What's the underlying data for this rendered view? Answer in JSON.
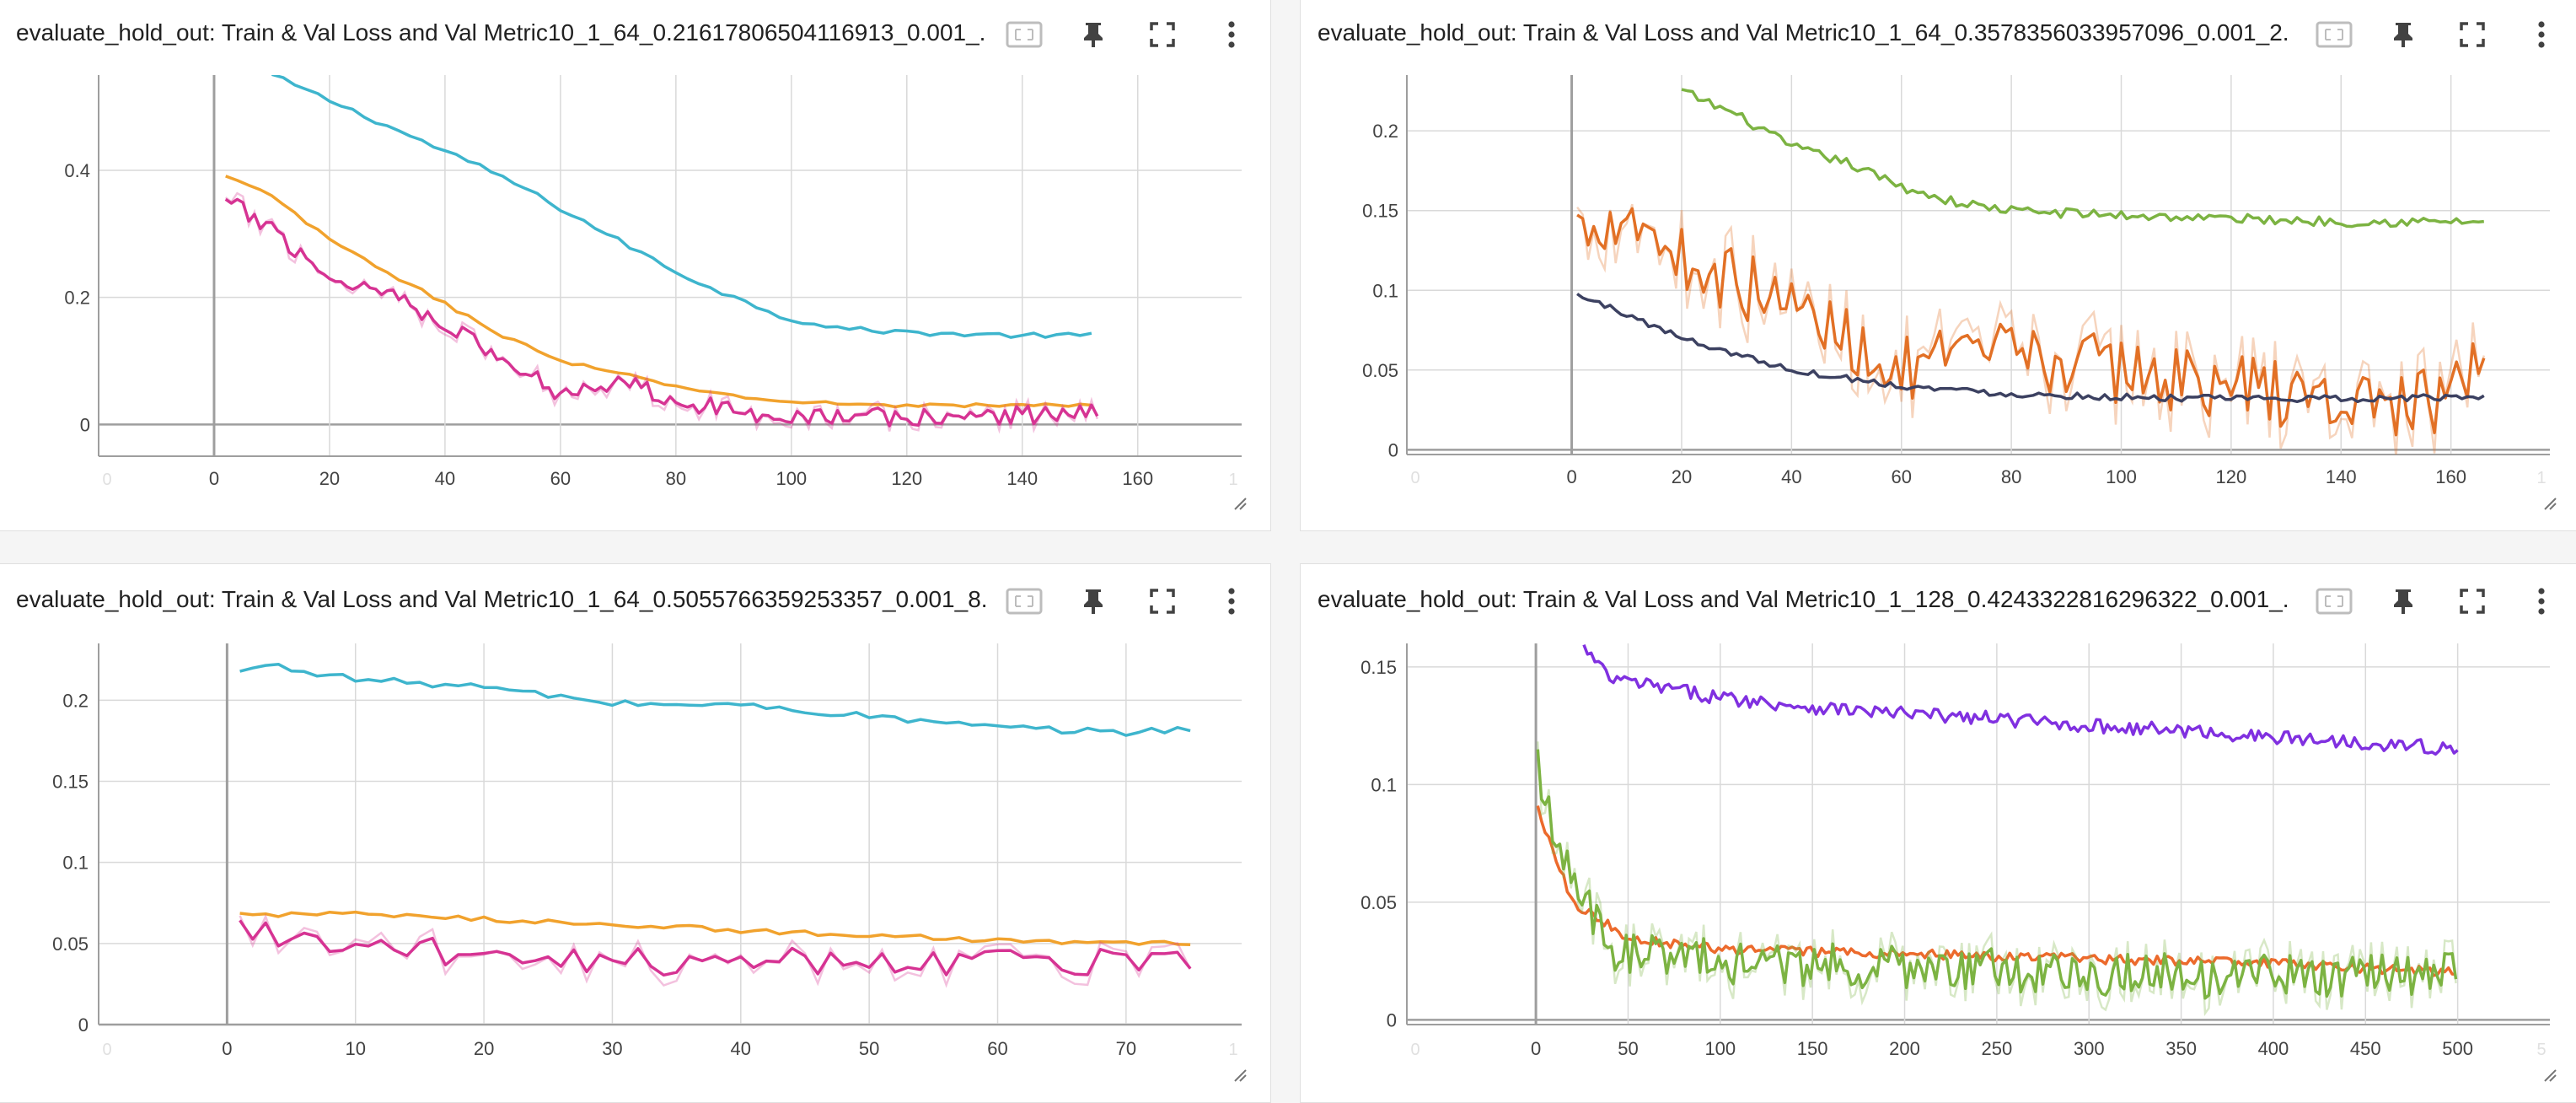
{
  "colors": {
    "cyan": "#3eb5cd",
    "orange": "#f1a22d",
    "magenta": "#d63393",
    "green": "#7cb342",
    "darkorange": "#e27025",
    "navy": "#3c4161",
    "purple": "#8030e0",
    "orangered": "#ec6a2c"
  },
  "icons": [
    "fit-domain-icon",
    "pin-icon",
    "fullscreen-icon",
    "more-vert-icon"
  ],
  "cards": [
    {
      "title": "evaluate_hold_out: Train & Val Loss and Val Metric10_1_64_0.21617806504116913_0.001_..."
    },
    {
      "title": "evaluate_hold_out: Train & Val Loss and Val Metric10_1_64_0.3578356033957096_0.001_2..."
    },
    {
      "title": "evaluate_hold_out: Train & Val Loss and Val Metric10_1_64_0.5055766359253357_0.001_8..."
    },
    {
      "title": "evaluate_hold_out: Train & Val Loss and Val Metric10_1_128_0.4243322816296322_0.001_..."
    }
  ],
  "chart_data": [
    {
      "type": "line",
      "xlim": [
        -20,
        178
      ],
      "ylim": [
        -0.05,
        0.55
      ],
      "xticks": [
        0,
        20,
        40,
        60,
        80,
        100,
        120,
        140,
        160
      ],
      "xtick_labels": [
        "0",
        "20",
        "40",
        "60",
        "80",
        "100",
        "120",
        "140",
        "160"
      ],
      "xedge_labels": [
        "0",
        "1"
      ],
      "yticks": [
        0,
        0.2,
        0.4
      ],
      "ytick_labels": [
        "0",
        "0.2",
        "0.4"
      ],
      "grid": true,
      "series": [
        {
          "color": "cyan",
          "step": 2,
          "points": [
            [
              10,
              0.55
            ],
            [
              20,
              0.51
            ],
            [
              30,
              0.47
            ],
            [
              40,
              0.43
            ],
            [
              50,
              0.39
            ],
            [
              60,
              0.34
            ],
            [
              70,
              0.29
            ],
            [
              80,
              0.24
            ],
            [
              90,
              0.2
            ],
            [
              100,
              0.165
            ],
            [
              110,
              0.15
            ],
            [
              120,
              0.145
            ],
            [
              130,
              0.142
            ],
            [
              140,
              0.14
            ],
            [
              153,
              0.14
            ]
          ],
          "noise": 0.004
        },
        {
          "color": "orange",
          "step": 2,
          "points": [
            [
              2,
              0.39
            ],
            [
              10,
              0.36
            ],
            [
              20,
              0.29
            ],
            [
              30,
              0.24
            ],
            [
              40,
              0.19
            ],
            [
              50,
              0.14
            ],
            [
              60,
              0.1
            ],
            [
              70,
              0.08
            ],
            [
              80,
              0.06
            ],
            [
              90,
              0.045
            ],
            [
              100,
              0.035
            ],
            [
              120,
              0.03
            ],
            [
              140,
              0.03
            ],
            [
              153,
              0.03
            ]
          ],
          "noise": 0.003
        },
        {
          "color": "magenta",
          "step": 1,
          "points": [
            [
              2,
              0.35
            ],
            [
              10,
              0.31
            ],
            [
              20,
              0.23
            ],
            [
              30,
              0.21
            ],
            [
              40,
              0.16
            ],
            [
              50,
              0.1
            ],
            [
              60,
              0.05
            ],
            [
              70,
              0.07
            ],
            [
              80,
              0.04
            ],
            [
              90,
              0.02
            ],
            [
              100,
              0.015
            ],
            [
              120,
              0.01
            ],
            [
              140,
              0.015
            ],
            [
              153,
              0.02
            ]
          ],
          "noise": 0.025,
          "shadow": true
        }
      ]
    },
    {
      "type": "line",
      "xlim": [
        -30,
        178
      ],
      "ylim": [
        -0.003,
        0.235
      ],
      "xticks": [
        0,
        20,
        40,
        60,
        80,
        100,
        120,
        140,
        160
      ],
      "xtick_labels": [
        "0",
        "20",
        "40",
        "60",
        "80",
        "100",
        "120",
        "140",
        "160"
      ],
      "xedge_labels": [
        "0",
        "1"
      ],
      "yticks": [
        0,
        0.05,
        0.1,
        0.15,
        0.2
      ],
      "ytick_labels": [
        "0",
        "0.05",
        "0.1",
        "0.15",
        "0.2"
      ],
      "grid": true,
      "series": [
        {
          "color": "green",
          "step": 1,
          "points": [
            [
              20,
              0.225
            ],
            [
              30,
              0.21
            ],
            [
              40,
              0.19
            ],
            [
              50,
              0.18
            ],
            [
              60,
              0.165
            ],
            [
              70,
              0.155
            ],
            [
              80,
              0.15
            ],
            [
              100,
              0.147
            ],
            [
              120,
              0.145
            ],
            [
              140,
              0.143
            ],
            [
              166,
              0.143
            ]
          ],
          "noise": 0.003
        },
        {
          "color": "darkorange",
          "step": 1,
          "points": [
            [
              1,
              0.14
            ],
            [
              10,
              0.15
            ],
            [
              20,
              0.12
            ],
            [
              40,
              0.09
            ],
            [
              60,
              0.05
            ],
            [
              80,
              0.06
            ],
            [
              100,
              0.05
            ],
            [
              120,
              0.04
            ],
            [
              140,
              0.03
            ],
            [
              160,
              0.03
            ],
            [
              166,
              0.055
            ]
          ],
          "noise": 0.035,
          "shadow": true
        },
        {
          "color": "navy",
          "step": 1,
          "points": [
            [
              1,
              0.097
            ],
            [
              10,
              0.085
            ],
            [
              20,
              0.07
            ],
            [
              30,
              0.06
            ],
            [
              40,
              0.05
            ],
            [
              60,
              0.04
            ],
            [
              80,
              0.035
            ],
            [
              100,
              0.033
            ],
            [
              120,
              0.032
            ],
            [
              140,
              0.032
            ],
            [
              166,
              0.033
            ]
          ],
          "noise": 0.002
        }
      ]
    },
    {
      "type": "line",
      "xlim": [
        -10,
        79
      ],
      "ylim": [
        0,
        0.235
      ],
      "xticks": [
        0,
        10,
        20,
        30,
        40,
        50,
        60,
        70
      ],
      "xtick_labels": [
        "0",
        "10",
        "20",
        "30",
        "40",
        "50",
        "60",
        "70"
      ],
      "xedge_labels": [
        "0",
        "1"
      ],
      "yticks": [
        0,
        0.05,
        0.1,
        0.15,
        0.2
      ],
      "ytick_labels": [
        "0",
        "0.05",
        "0.1",
        "0.15",
        "0.2"
      ],
      "grid": true,
      "series": [
        {
          "color": "cyan",
          "step": 1,
          "points": [
            [
              1,
              0.217
            ],
            [
              3,
              0.222
            ],
            [
              10,
              0.213
            ],
            [
              20,
              0.208
            ],
            [
              30,
              0.198
            ],
            [
              40,
              0.197
            ],
            [
              50,
              0.19
            ],
            [
              60,
              0.183
            ],
            [
              70,
              0.18
            ],
            [
              75,
              0.183
            ]
          ],
          "noise": 0.002
        },
        {
          "color": "orange",
          "step": 1,
          "points": [
            [
              1,
              0.068
            ],
            [
              10,
              0.068
            ],
            [
              20,
              0.065
            ],
            [
              30,
              0.062
            ],
            [
              40,
              0.058
            ],
            [
              50,
              0.055
            ],
            [
              60,
              0.052
            ],
            [
              70,
              0.05
            ],
            [
              75,
              0.05
            ]
          ],
          "noise": 0.0015
        },
        {
          "color": "magenta",
          "step": 1,
          "points": [
            [
              1,
              0.06
            ],
            [
              10,
              0.045
            ],
            [
              20,
              0.045
            ],
            [
              30,
              0.04
            ],
            [
              40,
              0.04
            ],
            [
              50,
              0.04
            ],
            [
              60,
              0.04
            ],
            [
              70,
              0.04
            ],
            [
              75,
              0.035
            ]
          ],
          "noise": 0.016,
          "shadow": true
        }
      ]
    },
    {
      "type": "line",
      "xlim": [
        -70,
        550
      ],
      "ylim": [
        -0.002,
        0.16
      ],
      "xticks": [
        0,
        50,
        100,
        150,
        200,
        250,
        300,
        350,
        400,
        450,
        500
      ],
      "xtick_labels": [
        "0",
        "50",
        "100",
        "150",
        "200",
        "250",
        "300",
        "350",
        "400",
        "450",
        "500"
      ],
      "xedge_labels": [
        "0",
        "5"
      ],
      "yticks": [
        0,
        0.05,
        0.1,
        0.15
      ],
      "ytick_labels": [
        "0",
        "0.05",
        "0.1",
        "0.15"
      ],
      "grid": true,
      "series": [
        {
          "color": "purple",
          "step": 2,
          "points": [
            [
              26,
              0.158
            ],
            [
              40,
              0.145
            ],
            [
              100,
              0.137
            ],
            [
              150,
              0.133
            ],
            [
              200,
              0.13
            ],
            [
              250,
              0.128
            ],
            [
              300,
              0.125
            ],
            [
              350,
              0.123
            ],
            [
              400,
              0.12
            ],
            [
              450,
              0.118
            ],
            [
              500,
              0.115
            ]
          ],
          "noise": 0.003
        },
        {
          "color": "orangered",
          "step": 2,
          "points": [
            [
              1,
              0.09
            ],
            [
              20,
              0.05
            ],
            [
              50,
              0.035
            ],
            [
              100,
              0.03
            ],
            [
              200,
              0.028
            ],
            [
              300,
              0.026
            ],
            [
              400,
              0.024
            ],
            [
              500,
              0.02
            ]
          ],
          "noise": 0.002
        },
        {
          "color": "green",
          "step": 2,
          "points": [
            [
              1,
              0.11
            ],
            [
              10,
              0.08
            ],
            [
              20,
              0.06
            ],
            [
              40,
              0.03
            ],
            [
              100,
              0.025
            ],
            [
              200,
              0.022
            ],
            [
              300,
              0.02
            ],
            [
              400,
              0.018
            ],
            [
              500,
              0.02
            ]
          ],
          "noise": 0.016,
          "shadow": true
        }
      ]
    }
  ]
}
